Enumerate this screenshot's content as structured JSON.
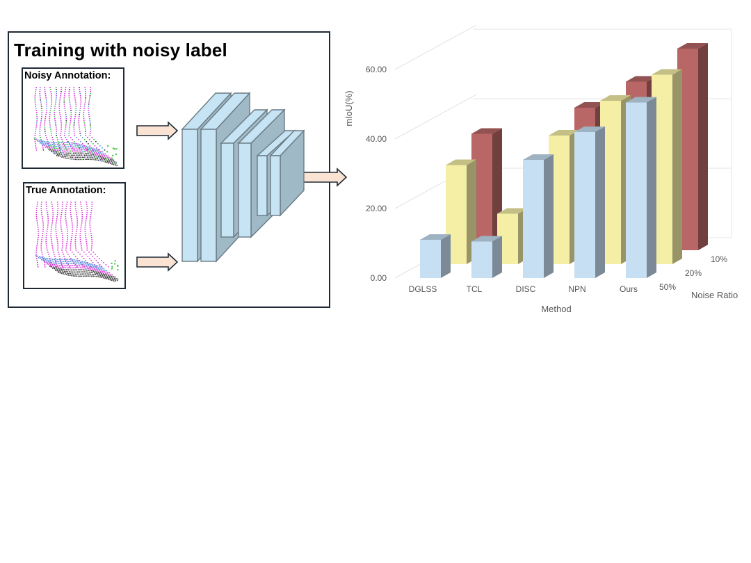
{
  "panel": {
    "title": "Training with noisy label",
    "noisy_label": "Noisy Annotation:",
    "true_label": "True Annotation:"
  },
  "colors": {
    "scan_magenta": "#d93ad6",
    "scan_blue": "#5a8de0",
    "scan_dark": "#333333",
    "scan_green": "#3cc23c",
    "layer_fill": "#c6e4f4",
    "layer_side": "#9fb9c6",
    "arrow_fill": "#fbe3d4"
  },
  "chart_data": {
    "type": "bar",
    "style": "3d-clustered",
    "categories": [
      "DGLSS",
      "TCL",
      "DISC",
      "NPN",
      "Ours"
    ],
    "series": [
      {
        "name": "50%",
        "values": [
          11.0,
          10.5,
          34.0,
          42.0,
          50.5
        ],
        "color": "#c6dff2"
      },
      {
        "name": "20%",
        "values": [
          28.5,
          14.5,
          37.0,
          47.0,
          54.5
        ],
        "color": "#f5efa6"
      },
      {
        "name": "10%",
        "values": [
          33.5,
          12.0,
          41.0,
          48.5,
          58.0
        ],
        "color": "#b86666"
      }
    ],
    "yticks": [
      "0.00",
      "20.00",
      "40.00",
      "60.00"
    ],
    "ylim": [
      0,
      70
    ],
    "ylabel": "mIoU(%)",
    "xlabel": "Method",
    "zlabel": "Noise Ratio"
  }
}
